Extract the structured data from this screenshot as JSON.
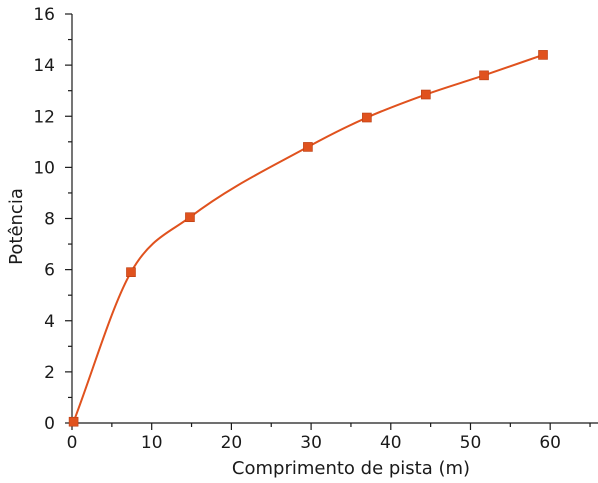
{
  "chart_data": {
    "type": "line",
    "title": "",
    "xlabel": "Comprimento de pista (m)",
    "ylabel": "Potência",
    "xlim": [
      0,
      66
    ],
    "ylim": [
      0,
      16
    ],
    "xticks": [
      0,
      10,
      20,
      30,
      40,
      50,
      60
    ],
    "yticks": [
      0,
      2,
      4,
      6,
      8,
      10,
      12,
      14,
      16
    ],
    "grid": false,
    "legend": "none",
    "series": [
      {
        "x": [
          0.2,
          7.4,
          14.8,
          29.6,
          37.0,
          44.4,
          51.7,
          59.1
        ],
        "y": [
          0.05,
          5.9,
          8.05,
          10.8,
          11.95,
          12.85,
          13.6,
          14.4
        ],
        "color": "#e0521e",
        "marker": "square"
      }
    ]
  }
}
